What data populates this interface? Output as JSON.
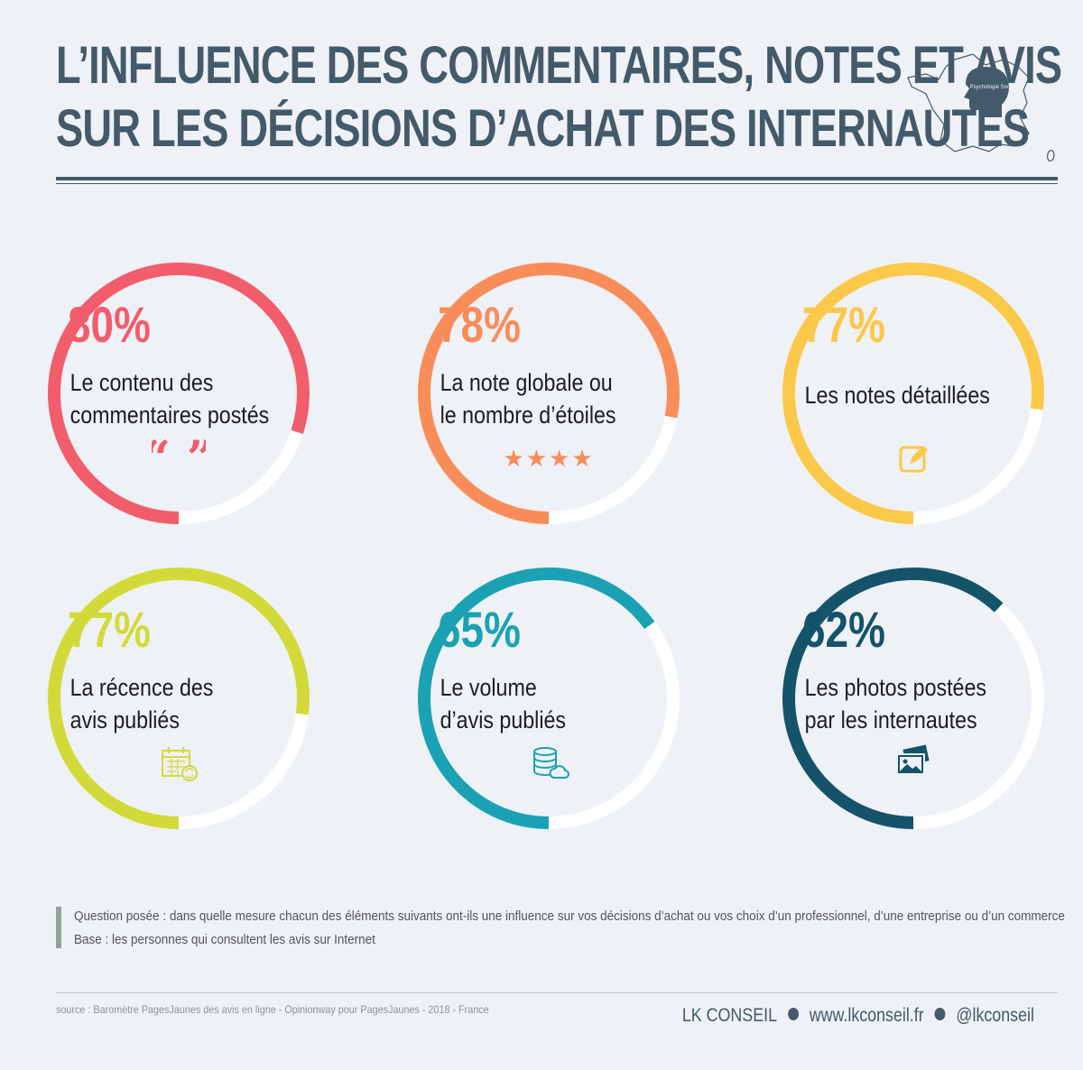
{
  "header": {
    "title_line1": "L’INFLUENCE DES COMMENTAIRES, NOTES ET AVIS",
    "title_line2": "SUR LES DÉCISIONS D’ACHAT DES INTERNAUTES",
    "logo_text": "Sites Psychologie Sociale",
    "color": "#435a6b"
  },
  "chart_data": {
    "type": "radial-progress",
    "items": [
      {
        "value": 80,
        "display": "80%",
        "label_line1": "Le contenu des",
        "label_line2": "commentaires postés",
        "color": "#f25d6b",
        "icon": "quote-icon"
      },
      {
        "value": 78,
        "display": "78%",
        "label_line1": "La note globale ou",
        "label_line2": "le nombre d’étoiles",
        "color": "#f88d5a",
        "icon": "stars-icon",
        "icon_text": "★★★★"
      },
      {
        "value": 77,
        "display": "77%",
        "label_line1": "Les notes détaillées",
        "label_line2": "",
        "color": "#fbc84a",
        "icon": "edit-icon"
      },
      {
        "value": 77,
        "display": "77%",
        "label_line1": "La récence des",
        "label_line2": "avis publiés",
        "color": "#d2da3a",
        "icon": "calendar-refresh-icon"
      },
      {
        "value": 65,
        "display": "65%",
        "label_line1": "Le volume",
        "label_line2": "d’avis publiés",
        "color": "#1aa2b4",
        "icon": "database-cloud-icon"
      },
      {
        "value": 62,
        "display": "62%",
        "label_line1": "Les photos postées",
        "label_line2": "par les internautes",
        "color": "#15536a",
        "icon": "photos-icon"
      }
    ]
  },
  "notes": {
    "question": "Question posée : dans quelle mesure chacun des éléments suivants ont-ils une influence sur vos décisions d’achat ou vos choix d’un professionnel, d’une entreprise ou d’un commerce",
    "base": "Base : les personnes qui consultent les avis sur Internet"
  },
  "footer": {
    "source": "source : Baromètre PagesJaunes des avis en ligne - Opinionway pour PagesJaunes - 2018 - France",
    "brand": "LK CONSEIL",
    "website": "www.lkconseil.fr",
    "handle": "@lkconseil"
  }
}
